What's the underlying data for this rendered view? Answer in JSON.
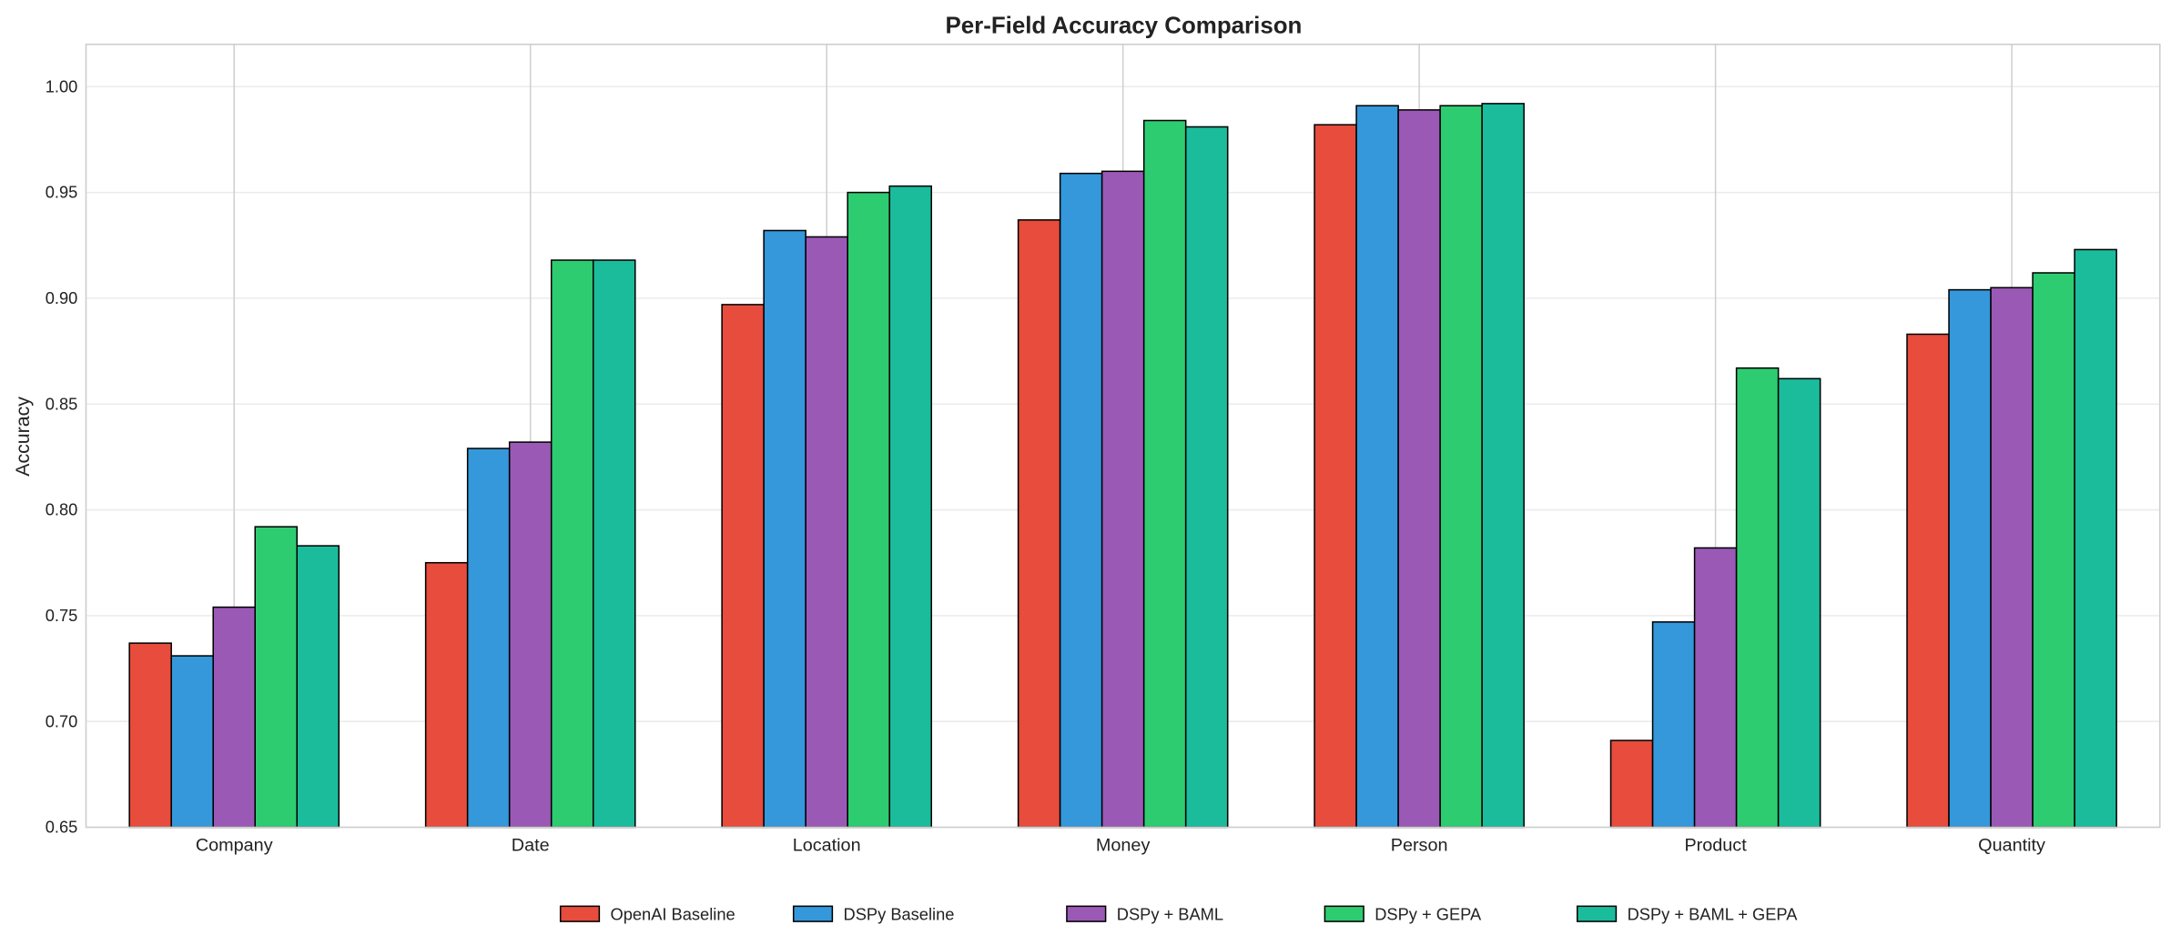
{
  "chart_data": {
    "type": "bar",
    "title": "Per-Field Accuracy Comparison",
    "xlabel": "",
    "ylabel": "Accuracy",
    "ylim": [
      0.65,
      1.02
    ],
    "yticks": [
      "0.65",
      "0.70",
      "0.75",
      "0.80",
      "0.85",
      "0.90",
      "0.95",
      "1.00"
    ],
    "grid": true,
    "legend_position": "bottom-center",
    "categories": [
      "Company",
      "Date",
      "Location",
      "Money",
      "Person",
      "Product",
      "Quantity"
    ],
    "series": [
      {
        "name": "OpenAI Baseline",
        "color": "#e74c3c",
        "values": [
          0.737,
          0.775,
          0.897,
          0.937,
          0.982,
          0.691,
          0.883
        ]
      },
      {
        "name": "DSPy Baseline",
        "color": "#3498db",
        "values": [
          0.731,
          0.829,
          0.932,
          0.959,
          0.991,
          0.747,
          0.904
        ]
      },
      {
        "name": "DSPy + BAML",
        "color": "#9b59b6",
        "values": [
          0.754,
          0.832,
          0.929,
          0.96,
          0.989,
          0.782,
          0.905
        ]
      },
      {
        "name": "DSPy + GEPA",
        "color": "#2ecc71",
        "values": [
          0.792,
          0.918,
          0.95,
          0.984,
          0.991,
          0.867,
          0.912
        ]
      },
      {
        "name": "DSPy + BAML + GEPA",
        "color": "#1abc9c",
        "values": [
          0.783,
          0.918,
          0.953,
          0.981,
          0.992,
          0.862,
          0.923
        ]
      }
    ]
  }
}
